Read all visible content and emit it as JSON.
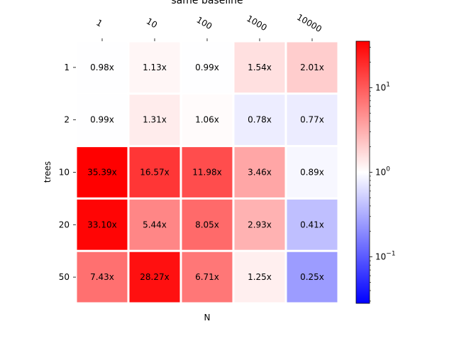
{
  "chart_data": {
    "type": "heatmap",
    "title": "same baseline",
    "xlabel": "N",
    "ylabel": "trees",
    "x_categories": [
      "1",
      "10",
      "100",
      "1000",
      "10000"
    ],
    "y_categories": [
      "1",
      "2",
      "10",
      "20",
      "50"
    ],
    "values": [
      [
        0.98,
        1.13,
        0.99,
        1.54,
        2.01
      ],
      [
        0.99,
        1.31,
        1.06,
        0.78,
        0.77
      ],
      [
        35.39,
        16.57,
        11.98,
        3.46,
        0.89
      ],
      [
        33.1,
        5.44,
        8.05,
        2.93,
        0.41
      ],
      [
        7.43,
        28.27,
        6.71,
        1.25,
        0.25
      ]
    ],
    "cell_labels": [
      [
        "0.98x",
        "1.13x",
        "0.99x",
        "1.54x",
        "2.01x"
      ],
      [
        "0.99x",
        "1.31x",
        "1.06x",
        "0.78x",
        "0.77x"
      ],
      [
        "35.39x",
        "16.57x",
        "11.98x",
        "3.46x",
        "0.89x"
      ],
      [
        "33.10x",
        "5.44x",
        "8.05x",
        "2.93x",
        "0.41x"
      ],
      [
        "7.43x",
        "28.27x",
        "6.71x",
        "1.25x",
        "0.25x"
      ]
    ],
    "colormap": "bwr",
    "color_scale": "log",
    "color_range": [
      0.02825,
      35.39
    ],
    "colorbar_ticks": [
      {
        "value": 0.1,
        "base": "10",
        "exp": "−1"
      },
      {
        "value": 1,
        "base": "10",
        "exp": "0"
      },
      {
        "value": 10,
        "base": "10",
        "exp": "1"
      }
    ],
    "x_tick_position": "top",
    "grid": false
  }
}
